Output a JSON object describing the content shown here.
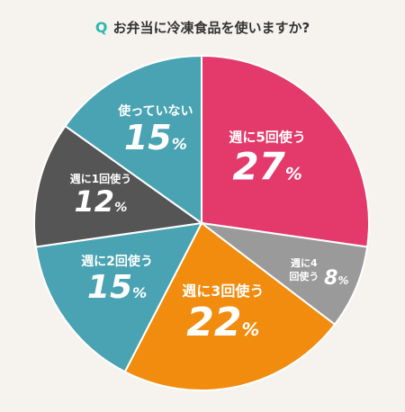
{
  "title": {
    "q": "Q",
    "text": "お弁当に冷凍食品を使いますか?"
  },
  "chart_data": {
    "type": "pie",
    "title": "お弁当に冷凍食品を使いますか?",
    "unit": "%",
    "slices": [
      {
        "label": "週に5回使う",
        "value": 27,
        "color": "#e33a6b"
      },
      {
        "label": "週に4回使う",
        "value": 8,
        "color": "#9a9a9a"
      },
      {
        "label": "週に3回使う",
        "value": 22,
        "color": "#f18c0e"
      },
      {
        "label": "週に2回使う",
        "value": 15,
        "color": "#4aa3b2"
      },
      {
        "label": "週に1回使う",
        "value": 12,
        "color": "#555555"
      },
      {
        "label": "使っていない",
        "value": 15,
        "color": "#4aa3b2"
      }
    ]
  }
}
